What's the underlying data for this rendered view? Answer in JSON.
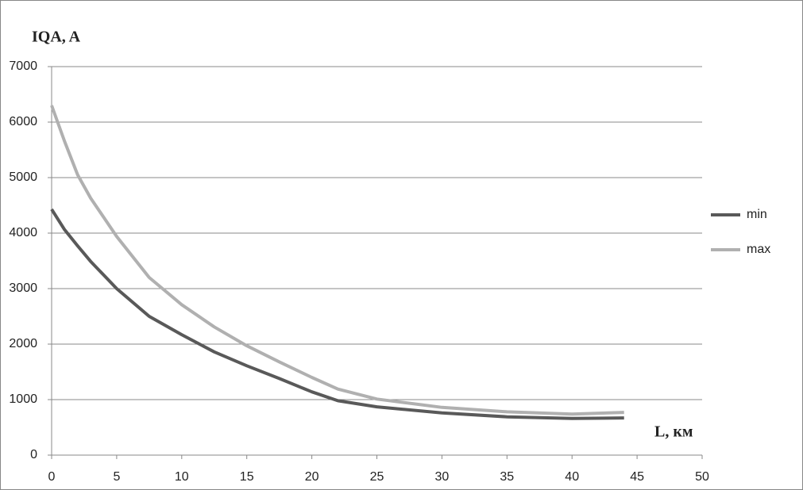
{
  "chart_data": {
    "type": "line",
    "y_label": "IQA, A",
    "x_label": "L, км",
    "x": [
      0,
      1,
      2,
      3,
      5,
      7.5,
      10,
      12.5,
      15,
      17.5,
      20,
      22,
      25,
      30,
      35,
      40,
      44
    ],
    "series": [
      {
        "name": "min",
        "color": "#595959",
        "values": [
          4430,
          4060,
          3770,
          3490,
          3000,
          2500,
          2170,
          1860,
          1610,
          1380,
          1140,
          980,
          870,
          760,
          690,
          660,
          670
        ]
      },
      {
        "name": "max",
        "color": "#b0b0b0",
        "values": [
          6300,
          5650,
          5050,
          4630,
          3940,
          3200,
          2710,
          2310,
          1970,
          1680,
          1400,
          1190,
          1010,
          860,
          780,
          740,
          770
        ]
      }
    ],
    "xlim": [
      0,
      50
    ],
    "xticks": [
      0,
      5,
      10,
      15,
      20,
      25,
      30,
      35,
      40,
      45,
      50
    ],
    "ylim": [
      0,
      7000
    ],
    "yticks": [
      0,
      1000,
      2000,
      3000,
      4000,
      5000,
      6000,
      7000
    ],
    "grid": true,
    "legend": "right"
  }
}
